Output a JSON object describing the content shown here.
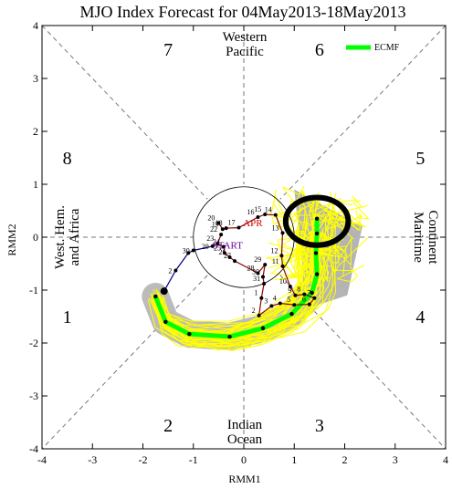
{
  "chart_data": {
    "type": "scatter",
    "title": "MJO Index Forecast for 04May2013-18May2013",
    "xlabel": "RMM1",
    "ylabel": "RMM2",
    "xlim": [
      -4,
      4
    ],
    "ylim": [
      -4,
      4
    ],
    "x_ticks": [
      "-4",
      "-3",
      "-2",
      "-1",
      "0",
      "1",
      "2",
      "3",
      "4"
    ],
    "y_ticks": [
      "-4",
      "-3",
      "-2",
      "-1",
      "0",
      "1",
      "2",
      "3",
      "4"
    ],
    "grid": false,
    "legend": {
      "position": "top-right",
      "entries": [
        {
          "name": "ECMF",
          "color": "#00ff00"
        }
      ]
    },
    "phases": [
      {
        "label": "1",
        "x": -3.5,
        "y": -1.5
      },
      {
        "label": "2",
        "x": -1.5,
        "y": -3.55
      },
      {
        "label": "3",
        "x": 1.5,
        "y": -3.55
      },
      {
        "label": "4",
        "x": 3.5,
        "y": -1.5
      },
      {
        "label": "5",
        "x": 3.5,
        "y": 1.5
      },
      {
        "label": "6",
        "x": 1.5,
        "y": 3.55
      },
      {
        "label": "7",
        "x": -1.5,
        "y": 3.55
      },
      {
        "label": "8",
        "x": -3.5,
        "y": 1.5
      }
    ],
    "region_labels": {
      "top": [
        "Western",
        "Pacific"
      ],
      "bottom": [
        "Indian",
        "Ocean"
      ],
      "left": [
        "West. Hem.",
        "and Africa"
      ],
      "right": [
        "Maritime",
        "Continent"
      ]
    },
    "markers": [
      {
        "text": "START",
        "x": -0.32,
        "y": -0.15,
        "color": "#6a00a0"
      },
      {
        "text": "APR",
        "x": 0.18,
        "y": 0.28,
        "color": "#cc0000"
      }
    ],
    "observed_path": {
      "color": "#000080",
      "points": [
        {
          "label": "",
          "x": -1.58,
          "y": -1.02
        },
        {
          "label": "2",
          "x": -1.35,
          "y": -0.63
        },
        {
          "label": "",
          "x": -1.1,
          "y": -0.3
        },
        {
          "label": "30",
          "x": -1.0,
          "y": -0.25
        },
        {
          "label": "29",
          "x": -0.62,
          "y": -0.17
        }
      ]
    },
    "april_path": {
      "color": "#8b0000",
      "points": [
        {
          "label": "20",
          "x": -0.5,
          "y": 0.27
        },
        {
          "label": "19",
          "x": -0.42,
          "y": 0.15
        },
        {
          "label": "18",
          "x": -0.35,
          "y": 0.17
        },
        {
          "label": "17",
          "x": -0.1,
          "y": 0.18
        },
        {
          "label": "16",
          "x": 0.28,
          "y": 0.38
        },
        {
          "label": "15",
          "x": 0.42,
          "y": 0.43
        },
        {
          "label": "14",
          "x": 0.63,
          "y": 0.42
        },
        {
          "label": "13",
          "x": 0.77,
          "y": 0.08
        },
        {
          "label": "12",
          "x": 0.75,
          "y": -0.35
        },
        {
          "label": "11",
          "x": 0.77,
          "y": -0.55
        },
        {
          "label": "10",
          "x": 0.92,
          "y": -0.93
        },
        {
          "label": "9",
          "x": 1.02,
          "y": -1.1
        },
        {
          "label": "8",
          "x": 1.2,
          "y": -1.08
        },
        {
          "label": "7",
          "x": 1.4,
          "y": -1.15
        },
        {
          "label": "6",
          "x": 1.3,
          "y": -1.27
        },
        {
          "label": "5",
          "x": 1.0,
          "y": -1.28
        },
        {
          "label": "4",
          "x": 0.72,
          "y": -1.25
        },
        {
          "label": "3",
          "x": 0.55,
          "y": -1.3
        },
        {
          "label": "2",
          "x": 0.3,
          "y": -1.48
        },
        {
          "label": "1",
          "x": 0.35,
          "y": -1.15
        },
        {
          "label": "31",
          "x": 0.4,
          "y": -0.88
        },
        {
          "label": "30",
          "x": 0.38,
          "y": -0.75
        },
        {
          "label": "29",
          "x": 0.42,
          "y": -0.52
        },
        {
          "label": "28",
          "x": 0.28,
          "y": -0.68
        },
        {
          "label": "27",
          "x": -0.18,
          "y": -0.45
        },
        {
          "label": "26",
          "x": -0.28,
          "y": -0.38
        },
        {
          "label": "25",
          "x": -0.38,
          "y": -0.3
        },
        {
          "label": "24",
          "x": -0.4,
          "y": -0.18
        },
        {
          "label": "23",
          "x": -0.52,
          "y": -0.12
        },
        {
          "label": "22",
          "x": -0.45,
          "y": 0.05
        }
      ]
    },
    "forecast_mean": {
      "name": "ECMF",
      "color": "#00ff00",
      "points": [
        {
          "x": -1.75,
          "y": -1.12
        },
        {
          "x": -1.55,
          "y": -1.6
        },
        {
          "x": -1.08,
          "y": -1.83
        },
        {
          "x": -0.28,
          "y": -1.88
        },
        {
          "x": 0.38,
          "y": -1.72
        },
        {
          "x": 0.95,
          "y": -1.45
        },
        {
          "x": 1.35,
          "y": -1.05
        },
        {
          "x": 1.45,
          "y": -0.7
        },
        {
          "x": 1.43,
          "y": -0.3
        },
        {
          "x": 1.45,
          "y": 0.07
        },
        {
          "x": 1.45,
          "y": 0.35
        }
      ]
    },
    "highlight_circle": {
      "x": 1.45,
      "y": 0.3,
      "rx": 0.62,
      "ry": 0.45
    },
    "unit_circle": {
      "x": 0,
      "y": 0,
      "r": 1
    }
  }
}
